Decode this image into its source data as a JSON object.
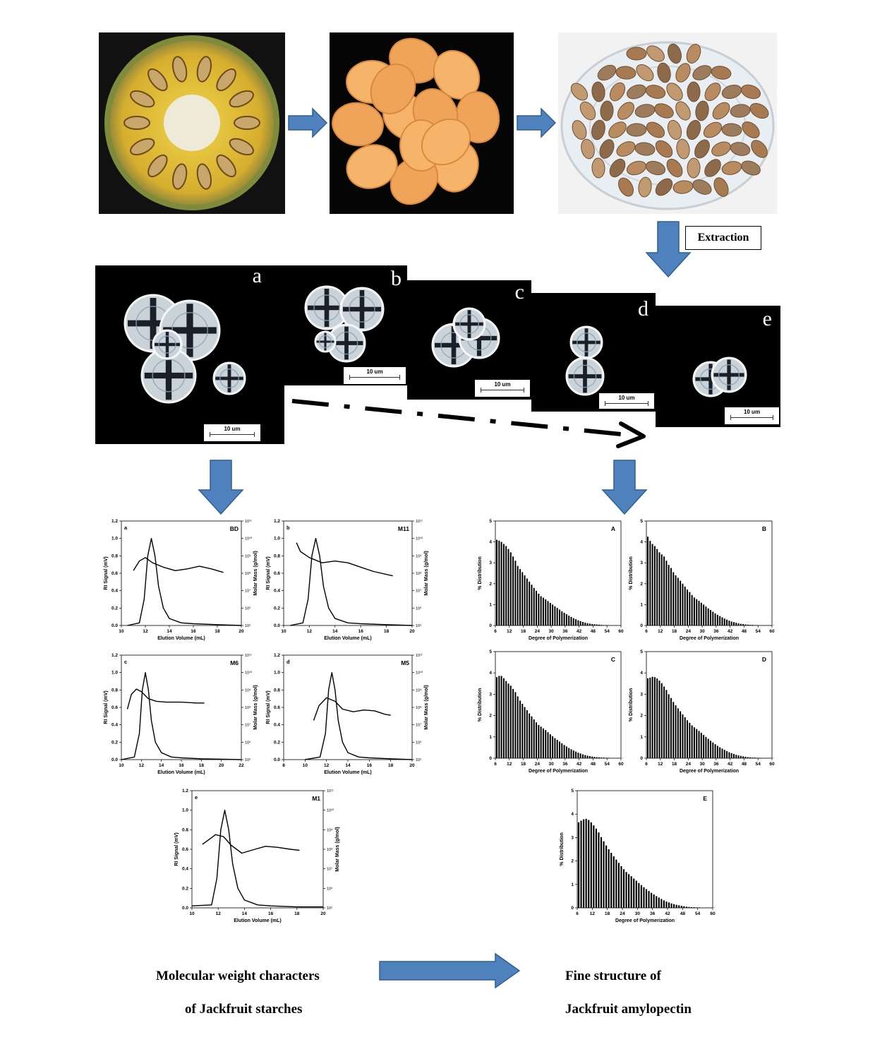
{
  "extraction_label": "Extraction",
  "micrograph_letters": [
    "a",
    "b",
    "c",
    "d",
    "e"
  ],
  "scale_bar_text": "10 um",
  "caption_left": [
    "Molecular weight characters",
    "of Jackfruit starches"
  ],
  "caption_right": [
    "Fine structure of",
    "Jackfruit amylopectin"
  ],
  "colors": {
    "arrow_fill": "#4f81bd",
    "arrow_stroke": "#2e5f95",
    "curve": "#000000",
    "bar": "#000000"
  },
  "chart_data": [
    {
      "type": "line",
      "panel": "a",
      "corner_label": "BD",
      "xlabel": "Elution Volume (mL)",
      "ylabel": "RI Signal (mV)",
      "y2label": "Molar Mass (g/mol)",
      "xlim": [
        10,
        20
      ],
      "xticks": [
        10,
        12,
        14,
        16,
        18,
        20
      ],
      "ylim": [
        0,
        1.2
      ],
      "yticks": [
        "0.0",
        "0.2",
        "0.4",
        "0.6",
        "0.8",
        "1.0",
        "1.2"
      ],
      "y2ticks": [
        "10⁵",
        "10⁶",
        "10⁷",
        "10⁸",
        "10⁹",
        "10¹⁰",
        "10¹¹"
      ],
      "ri_x": [
        10.5,
        11.5,
        11.9,
        12.2,
        12.5,
        12.8,
        13.1,
        13.5,
        14,
        15,
        16,
        18,
        20
      ],
      "ri_y": [
        0.0,
        0.03,
        0.3,
        0.8,
        1.0,
        0.8,
        0.45,
        0.2,
        0.08,
        0.03,
        0.02,
        0.01,
        0.0
      ],
      "mm_x": [
        11,
        11.5,
        12,
        12.6,
        13.5,
        14.5,
        15.5,
        16.5,
        17.5,
        18.5
      ],
      "mm_y": [
        0.63,
        0.74,
        0.78,
        0.72,
        0.67,
        0.63,
        0.65,
        0.68,
        0.65,
        0.61
      ]
    },
    {
      "type": "line",
      "panel": "b",
      "corner_label": "M11",
      "xlabel": "Elution Volume (mL)",
      "ylabel": "RI Signal (mV)",
      "y2label": "Molar Mass (g/mol)",
      "xlim": [
        10,
        20
      ],
      "xticks": [
        10,
        12,
        14,
        16,
        18,
        20
      ],
      "ylim": [
        0,
        1.2
      ],
      "yticks": [
        "0.0",
        "0.2",
        "0.4",
        "0.6",
        "0.8",
        "1.0",
        "1.2"
      ],
      "y2ticks": [
        "10⁵",
        "10⁶",
        "10⁷",
        "10⁸",
        "10⁹",
        "10¹⁰",
        "10¹¹"
      ],
      "ri_x": [
        10.5,
        11.5,
        11.9,
        12.2,
        12.5,
        12.8,
        13.1,
        13.5,
        14,
        15,
        16,
        18,
        20
      ],
      "ri_y": [
        0.0,
        0.03,
        0.3,
        0.8,
        1.0,
        0.8,
        0.45,
        0.2,
        0.08,
        0.03,
        0.02,
        0.01,
        0.0
      ],
      "mm_x": [
        11,
        11.3,
        12,
        13,
        14,
        15,
        16,
        17,
        18.5
      ],
      "mm_y": [
        0.95,
        0.85,
        0.78,
        0.72,
        0.74,
        0.72,
        0.67,
        0.62,
        0.57
      ]
    },
    {
      "type": "line",
      "panel": "c",
      "corner_label": "M6",
      "xlabel": "Elution Volume (mL)",
      "ylabel": "RI Signal (mV)",
      "y2label": "Molar Mass (g/mol)",
      "xlim": [
        10,
        22
      ],
      "xticks": [
        10,
        12,
        14,
        16,
        18,
        20,
        22
      ],
      "ylim": [
        0,
        1.2
      ],
      "yticks": [
        "0.0",
        "0.2",
        "0.4",
        "0.6",
        "0.8",
        "1.0",
        "1.2"
      ],
      "y2ticks": [
        "10⁵",
        "10⁶",
        "10⁷",
        "10⁸",
        "10⁹",
        "10¹⁰",
        "10¹¹"
      ],
      "ri_x": [
        10,
        11.3,
        11.8,
        12.1,
        12.4,
        12.7,
        13.0,
        13.4,
        14,
        15,
        16,
        18,
        22
      ],
      "ri_y": [
        0.0,
        0.03,
        0.3,
        0.8,
        1.0,
        0.8,
        0.45,
        0.2,
        0.08,
        0.03,
        0.02,
        0.01,
        0.0
      ],
      "mm_x": [
        10.6,
        11,
        11.5,
        12,
        12.7,
        13.5,
        14.5,
        16,
        17.5,
        18.3
      ],
      "mm_y": [
        0.58,
        0.75,
        0.81,
        0.78,
        0.7,
        0.67,
        0.66,
        0.66,
        0.65,
        0.65
      ]
    },
    {
      "type": "line",
      "panel": "d",
      "corner_label": "M5",
      "xlabel": "Elution Volume (mL)",
      "ylabel": "RI Signal (mV)",
      "y2label": "Molar Mass (g/mol)",
      "xlim": [
        8,
        20
      ],
      "xticks": [
        8,
        10,
        12,
        14,
        16,
        18,
        20
      ],
      "ylim": [
        0,
        1.2
      ],
      "yticks": [
        "0.0",
        "0.2",
        "0.4",
        "0.6",
        "0.8",
        "1.0",
        "1.2"
      ],
      "y2ticks": [
        "10⁵",
        "10⁶",
        "10⁷",
        "10⁸",
        "10⁹",
        "10¹⁰",
        "10¹¹"
      ],
      "ri_x": [
        10,
        11.4,
        11.9,
        12.2,
        12.5,
        12.8,
        13.1,
        13.5,
        14,
        15,
        16,
        18,
        20
      ],
      "ri_y": [
        0.0,
        0.03,
        0.3,
        0.8,
        1.0,
        0.8,
        0.45,
        0.2,
        0.08,
        0.03,
        0.02,
        0.01,
        0.0
      ],
      "mm_x": [
        10.8,
        11.3,
        12,
        12.8,
        13.5,
        14.5,
        15.5,
        16.5,
        17.5,
        18
      ],
      "mm_y": [
        0.45,
        0.62,
        0.71,
        0.67,
        0.58,
        0.55,
        0.57,
        0.56,
        0.52,
        0.51
      ]
    },
    {
      "type": "line",
      "panel": "e",
      "corner_label": "M1",
      "xlabel": "Elution Volume (mL)",
      "ylabel": "RI Signal (mV)",
      "y2label": "Molar Mass (g/mol)",
      "xlim": [
        10,
        20
      ],
      "xticks": [
        10,
        12,
        14,
        16,
        18,
        20
      ],
      "ylim": [
        0,
        1.2
      ],
      "yticks": [
        "0.0",
        "0.2",
        "0.4",
        "0.6",
        "0.8",
        "1.0",
        "1.2"
      ],
      "y2ticks": [
        "10⁵",
        "10⁶",
        "10⁷",
        "10⁸",
        "10⁹",
        "10¹⁰",
        "10¹¹"
      ],
      "ri_x": [
        10,
        11.5,
        11.9,
        12.2,
        12.5,
        12.8,
        13.1,
        13.5,
        14,
        15,
        16,
        18,
        20
      ],
      "ri_y": [
        0.02,
        0.03,
        0.3,
        0.8,
        1.0,
        0.8,
        0.45,
        0.2,
        0.08,
        0.03,
        0.02,
        0.01,
        0.01
      ],
      "mm_x": [
        10.8,
        11.3,
        11.8,
        12.4,
        13,
        13.8,
        14.8,
        15.6,
        16.5,
        17.5,
        18.2
      ],
      "mm_y": [
        0.65,
        0.7,
        0.75,
        0.73,
        0.64,
        0.56,
        0.6,
        0.63,
        0.62,
        0.6,
        0.59
      ]
    },
    {
      "type": "bar",
      "panel": "A",
      "corner_label": "A",
      "xlabel": "Degree of Polymerization",
      "ylabel": "% Distribution",
      "xlim": [
        6,
        60
      ],
      "xticks": [
        6,
        12,
        18,
        24,
        30,
        36,
        42,
        48,
        54,
        60
      ],
      "ylim": [
        0,
        5
      ],
      "yticks": [
        0,
        1,
        2,
        3,
        4,
        5
      ],
      "values": [
        4.1,
        4.06,
        4.0,
        3.9,
        3.8,
        3.66,
        3.5,
        3.3,
        3.1,
        2.85,
        2.7,
        2.55,
        2.4,
        2.25,
        2.1,
        1.95,
        1.8,
        1.66,
        1.52,
        1.4,
        1.33,
        1.25,
        1.17,
        1.08,
        1.0,
        0.92,
        0.84,
        0.76,
        0.68,
        0.61,
        0.54,
        0.47,
        0.41,
        0.35,
        0.3,
        0.25,
        0.21,
        0.17,
        0.14,
        0.11,
        0.09,
        0.07,
        0.06,
        0.05,
        0.04,
        0.03,
        0.02,
        0.02,
        0.01,
        0.01
      ]
    },
    {
      "type": "bar",
      "panel": "B",
      "corner_label": "B",
      "xlabel": "Degree of Polymerization",
      "ylabel": "% Distribution",
      "xlim": [
        6,
        60
      ],
      "xticks": [
        6,
        12,
        18,
        24,
        30,
        36,
        42,
        48,
        54,
        60
      ],
      "ylim": [
        0,
        5
      ],
      "yticks": [
        0,
        1,
        2,
        3,
        4,
        5
      ],
      "values": [
        4.25,
        4.05,
        3.9,
        3.8,
        3.66,
        3.5,
        3.4,
        3.3,
        3.1,
        2.9,
        2.75,
        2.55,
        2.4,
        2.28,
        2.14,
        2.0,
        1.86,
        1.72,
        1.6,
        1.46,
        1.34,
        1.26,
        1.18,
        1.09,
        1.0,
        0.91,
        0.82,
        0.74,
        0.66,
        0.58,
        0.51,
        0.45,
        0.39,
        0.33,
        0.28,
        0.23,
        0.19,
        0.16,
        0.13,
        0.1,
        0.08,
        0.07,
        0.05,
        0.04,
        0.03,
        0.03,
        0.02,
        0.02,
        0.01,
        0.01,
        0.01,
        0.01,
        0.01,
        0.01,
        0.01
      ]
    },
    {
      "type": "bar",
      "panel": "C",
      "corner_label": "C",
      "xlabel": "Degree of Polymerization",
      "ylabel": "% Distribution",
      "xlim": [
        6,
        60
      ],
      "xticks": [
        6,
        12,
        18,
        24,
        30,
        36,
        42,
        48,
        54,
        60
      ],
      "ylim": [
        0,
        5
      ],
      "yticks": [
        0,
        1,
        2,
        3,
        4,
        5
      ],
      "values": [
        3.8,
        3.86,
        3.86,
        3.75,
        3.62,
        3.5,
        3.4,
        3.25,
        3.1,
        2.9,
        2.7,
        2.55,
        2.4,
        2.25,
        2.1,
        1.96,
        1.82,
        1.68,
        1.56,
        1.48,
        1.4,
        1.32,
        1.22,
        1.12,
        1.03,
        0.94,
        0.86,
        0.78,
        0.7,
        0.62,
        0.55,
        0.48,
        0.42,
        0.36,
        0.31,
        0.26,
        0.22,
        0.18,
        0.15,
        0.12,
        0.1,
        0.08,
        0.06,
        0.05,
        0.04,
        0.03,
        0.03,
        0.02,
        0.02,
        0.01,
        0.01,
        0.01,
        0.01,
        0.01,
        0.01
      ]
    },
    {
      "type": "bar",
      "panel": "D",
      "corner_label": "D",
      "xlabel": "Degree of Polymerization",
      "ylabel": "% Distribution",
      "xlim": [
        6,
        60
      ],
      "xticks": [
        6,
        12,
        18,
        24,
        30,
        36,
        42,
        48,
        54,
        60
      ],
      "ylim": [
        0,
        5
      ],
      "yticks": [
        0,
        1,
        2,
        3,
        4,
        5
      ],
      "values": [
        3.75,
        3.78,
        3.82,
        3.8,
        3.74,
        3.64,
        3.52,
        3.36,
        3.2,
        3.0,
        2.82,
        2.64,
        2.48,
        2.34,
        2.2,
        2.06,
        1.92,
        1.78,
        1.66,
        1.54,
        1.45,
        1.37,
        1.28,
        1.19,
        1.09,
        1.0,
        0.91,
        0.82,
        0.74,
        0.66,
        0.58,
        0.51,
        0.45,
        0.39,
        0.33,
        0.28,
        0.24,
        0.2,
        0.16,
        0.13,
        0.11,
        0.09,
        0.07,
        0.05,
        0.04,
        0.03,
        0.03,
        0.02,
        0.02,
        0.01,
        0.01,
        0.01,
        0.01,
        0.01,
        0.01
      ]
    },
    {
      "type": "bar",
      "panel": "E",
      "corner_label": "E",
      "xlabel": "Degree of Polymerization",
      "ylabel": "% Distribution",
      "xlim": [
        6,
        60
      ],
      "xticks": [
        6,
        12,
        18,
        24,
        30,
        36,
        42,
        48,
        54,
        60
      ],
      "ylim": [
        0,
        5
      ],
      "yticks": [
        0,
        1,
        2,
        3,
        4,
        5
      ],
      "values": [
        3.65,
        3.72,
        3.78,
        3.8,
        3.75,
        3.65,
        3.52,
        3.38,
        3.22,
        3.02,
        2.84,
        2.66,
        2.5,
        2.35,
        2.2,
        2.06,
        1.92,
        1.78,
        1.65,
        1.53,
        1.44,
        1.35,
        1.25,
        1.16,
        1.06,
        0.97,
        0.88,
        0.8,
        0.72,
        0.64,
        0.57,
        0.5,
        0.44,
        0.38,
        0.32,
        0.27,
        0.23,
        0.19,
        0.16,
        0.13,
        0.11,
        0.09,
        0.07,
        0.05,
        0.04,
        0.03,
        0.03,
        0.02,
        0.02,
        0.01,
        0.01,
        0.01,
        0.01,
        0.01,
        0.01
      ]
    }
  ]
}
